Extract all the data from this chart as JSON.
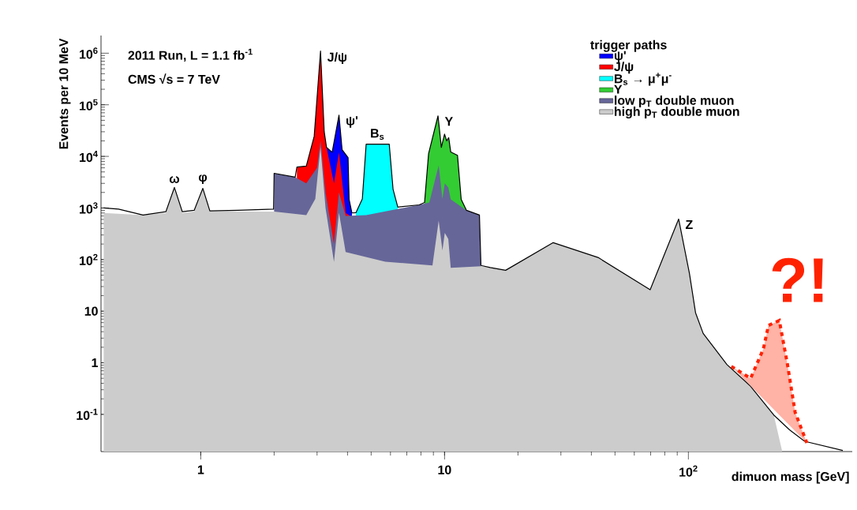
{
  "chart_data": {
    "type": "area",
    "title": null,
    "xlabel": "dimuon mass [GeV]",
    "ylabel": "Events per 10 MeV",
    "legend_title": "trigger paths",
    "log": "xy",
    "xlim": [
      0.39,
      470
    ],
    "ylim": [
      0.019,
      2200000
    ],
    "xticks": [
      1,
      10,
      {
        "value": 100,
        "label": "10$^{2}$"
      }
    ],
    "yticks": [
      {
        "value": 0.1,
        "label": "10$^{-1}$"
      },
      1,
      10,
      {
        "value": 100,
        "label": "10$^{2}$"
      },
      {
        "value": 1000,
        "label": "10$^{3}$"
      },
      {
        "value": 10000,
        "label": "10$^{4}$"
      },
      {
        "value": 100000,
        "label": "10$^{5}$"
      },
      {
        "value": 1000000,
        "label": "10$^{6}$"
      }
    ],
    "legend": "top right",
    "series": [
      {
        "name": "ψ'",
        "color": "#0000ff",
        "x": [
          3.28,
          3.46,
          3.69,
          3.8,
          4.02,
          4.06,
          4.17
        ],
        "values": [
          15000,
          12000,
          63000,
          13500,
          9500,
          1470,
          800
        ]
      },
      {
        "name": "J/ψ",
        "color": "#ff0000",
        "x": [
          2.48,
          2.71,
          2.92,
          3.1,
          3.21,
          3.28,
          3.52,
          3.69,
          3.93,
          4.1
        ],
        "values": [
          6200,
          6500,
          24500,
          1100000,
          30000,
          15000,
          3000,
          12000,
          800,
          700
        ]
      },
      {
        "name": "B$_{s}$ → μ$^{+}$μ$^{-}$",
        "color": "#00ffff",
        "x": [
          4.33,
          4.6,
          4.77,
          5.93,
          6.15,
          6.43
        ],
        "values": [
          810,
          1500,
          17300,
          17300,
          2300,
          1040
        ]
      },
      {
        "name": "Υ",
        "color": "#33cc33",
        "x": [
          8.28,
          8.6,
          9.4,
          9.7,
          10.0,
          10.2,
          10.4,
          10.6,
          11.3,
          11.7,
          12.3
        ],
        "values": [
          1280,
          11300,
          61000,
          15000,
          27000,
          20000,
          23000,
          12200,
          10500,
          1470,
          900
        ]
      },
      {
        "name": "low p$_{T}$ double muon",
        "color": "#666699",
        "x": [
          2.0,
          2.44,
          2.71,
          3.0,
          3.1,
          3.25,
          3.52,
          3.69,
          3.93,
          4.77,
          7.87,
          8.66,
          9.46,
          9.8,
          10.02,
          10.36,
          10.6,
          12.3,
          13.9,
          14.1
        ],
        "values": [
          4700,
          3950,
          3000,
          6000,
          20000,
          2000,
          200,
          2000,
          700,
          730,
          1150,
          1280,
          6700,
          1500,
          3000,
          2500,
          1470,
          900,
          730,
          77
        ]
      },
      {
        "name": "high p$_{T}$ double muon",
        "color": "#cccccc",
        "x": [
          0.4,
          0.58,
          0.72,
          0.78,
          0.84,
          0.94,
          1.02,
          1.09,
          1.42,
          2.0,
          2.71,
          2.95,
          3.1,
          3.25,
          3.52,
          3.69,
          3.93,
          5.71,
          8.92,
          9.46,
          9.8,
          10.02,
          10.36,
          10.6,
          14.1,
          15.4,
          17.8,
          27.9,
          42.6,
          69.7,
          91.2,
          101,
          107,
          115,
          144,
          180,
          224,
          242
        ],
        "values": [
          800,
          730,
          800,
          2500,
          800,
          850,
          2400,
          870,
          850,
          850,
          730,
          1500,
          15000,
          1000,
          90,
          810,
          140,
          91,
          77,
          570,
          150,
          330,
          250,
          69,
          74,
          70,
          62,
          213,
          110,
          26,
          610,
          54,
          9.3,
          3.7,
          0.92,
          0.35,
          0.097,
          0.02
        ]
      },
      {
        "type": "line",
        "color": "#000000",
        "x": [
          0.4,
          0.46,
          0.58,
          0.72,
          0.78,
          0.84,
          0.94,
          1.02,
          1.09,
          1.42,
          1.99,
          2.0,
          2.44,
          2.48,
          2.71,
          2.92,
          3.1,
          3.21,
          3.28,
          3.46,
          3.69,
          3.8,
          4.02,
          4.06,
          4.17,
          4.33,
          4.6,
          4.77,
          5.93,
          6.15,
          6.43,
          7.87,
          8.28,
          8.6,
          9.4,
          9.7,
          10.0,
          10.2,
          10.4,
          10.6,
          11.3,
          11.7,
          12.3,
          13.9,
          14.1,
          15.4,
          17.8,
          27.9,
          42.6,
          69.7,
          91.2,
          101,
          107,
          115,
          144,
          180,
          224,
          260,
          300,
          430
        ],
        "values": [
          1000,
          950,
          730,
          850,
          2500,
          850,
          900,
          2400,
          880,
          900,
          950,
          4700,
          3950,
          6200,
          6500,
          24500,
          1100000,
          30000,
          15000,
          12000,
          63000,
          13500,
          9500,
          1470,
          800,
          810,
          1500,
          17300,
          17300,
          2300,
          1040,
          1150,
          1280,
          11300,
          61000,
          15000,
          27000,
          20000,
          23000,
          12200,
          10500,
          1470,
          900,
          730,
          77,
          70,
          62,
          213,
          110,
          26,
          610,
          54,
          9.3,
          3.7,
          0.92,
          0.35,
          0.097,
          0.05,
          0.03,
          0.02
        ]
      },
      {
        "name": "?!",
        "color": "#ff2200",
        "line_style": "dotted",
        "x": [
          150,
          180,
          203,
          213,
          236,
          255,
          274,
          306
        ],
        "values": [
          0.85,
          0.5,
          1.85,
          5.3,
          6.6,
          0.92,
          0.11,
          0.028
        ]
      }
    ],
    "annotations": [
      "2011 Run, L = 1.1 fb$^{-1}$",
      "CMS  √s = 7 TeV",
      {
        "text": "ω",
        "x": 0.78,
        "y": 2500
      },
      {
        "text": "φ",
        "x": 1.02,
        "y": 2400
      },
      {
        "text": "J/ψ",
        "x": 3.1,
        "y": 1100000
      },
      {
        "text": "ψ'",
        "x": 3.69,
        "y": 63000
      },
      {
        "text": "B$_{s}$",
        "x": 5.3,
        "y": 17300
      },
      {
        "text": "Υ",
        "x": 9.4,
        "y": 61000
      },
      {
        "text": "Z",
        "x": 91.2,
        "y": 610
      }
    ]
  }
}
